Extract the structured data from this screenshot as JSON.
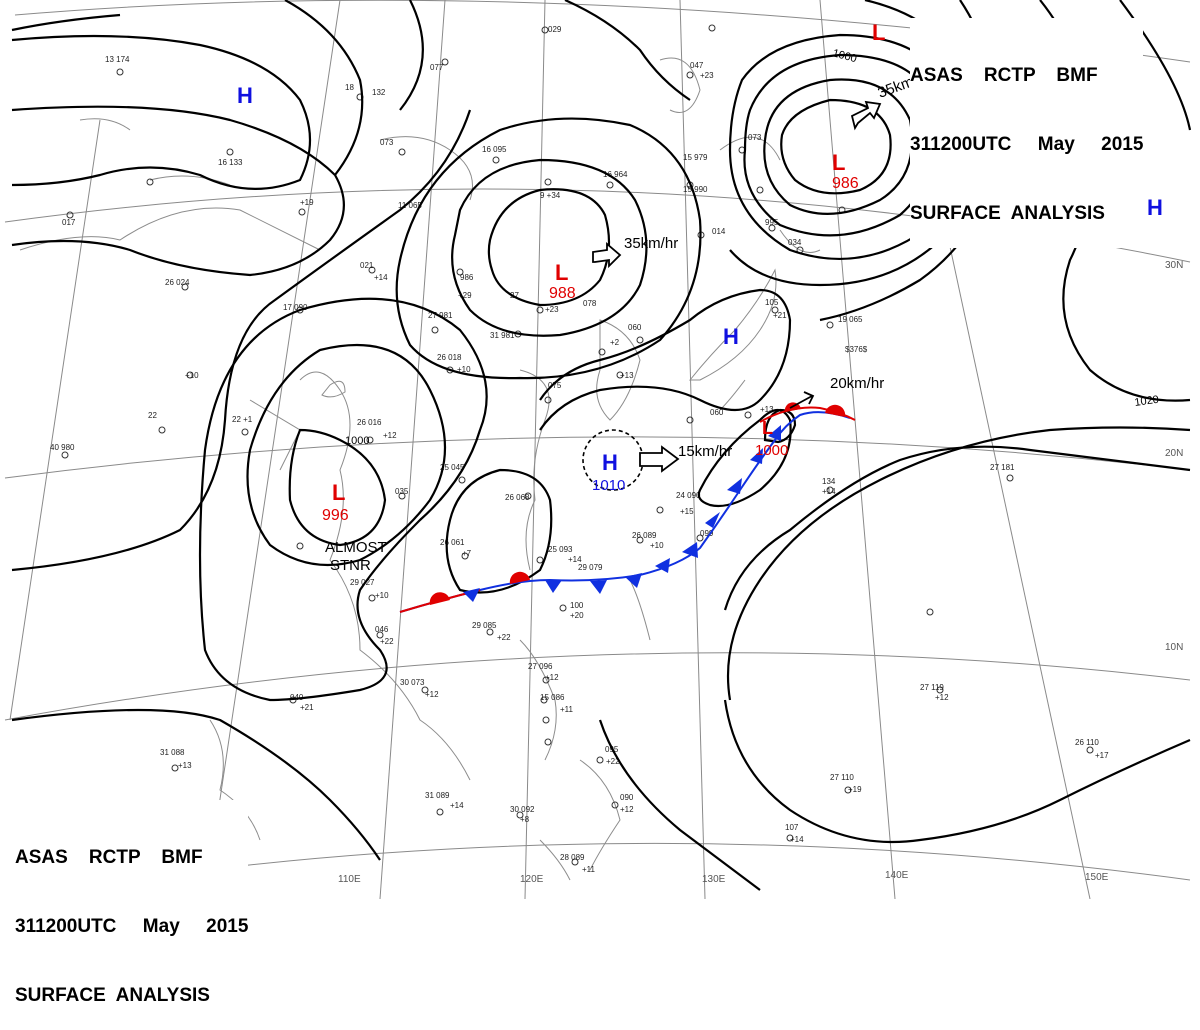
{
  "header": {
    "line1": "ASAS    RCTP    BMF",
    "line2": "311200UTC     May     2015",
    "line3": "SURFACE  ANALYSIS"
  },
  "colors": {
    "low": "#e00000",
    "high": "#1010e0",
    "cold_front": "#1030e0",
    "warm_front": "#e00000",
    "isobar": "#000000",
    "grid": "#777777",
    "coast": "#777777"
  },
  "pressure_centers": [
    {
      "id": "low-north-edge",
      "type": "L",
      "value": ""
    },
    {
      "id": "low-ne",
      "type": "L",
      "value": "986"
    },
    {
      "id": "low-mongolia",
      "type": "L",
      "value": "988"
    },
    {
      "id": "low-china",
      "type": "L",
      "value": "996"
    },
    {
      "id": "low-east",
      "type": "L",
      "value": "1000"
    },
    {
      "id": "high-nw",
      "type": "H",
      "value": ""
    },
    {
      "id": "high-east",
      "type": "H",
      "value": ""
    },
    {
      "id": "high-korea",
      "type": "H",
      "value": ""
    },
    {
      "id": "high-ecs",
      "type": "H",
      "value": "1010"
    }
  ],
  "movements": {
    "low_ne": "35km/hr",
    "low_mongolia": "35km/hr",
    "low_east": "20km/hr",
    "high_ecs": "15km/hr"
  },
  "annotations": {
    "almost_stnr_1": "ALMOST",
    "almost_stnr_2": "STNR"
  },
  "isobar_labels": [
    {
      "id": "iso-1000-ne",
      "text": "1000"
    },
    {
      "id": "iso-1000-ne-right",
      "text": "1000"
    },
    {
      "id": "iso-1020-right",
      "text": "1020"
    },
    {
      "id": "iso-1020-bottom",
      "text": "1020"
    },
    {
      "id": "iso-1000-china",
      "text": "1000"
    }
  ],
  "longitude_labels": [
    "110E",
    "120E",
    "130E",
    "140E",
    "150E"
  ],
  "latitude_labels": [
    "30N",
    "20N",
    "10N"
  ]
}
